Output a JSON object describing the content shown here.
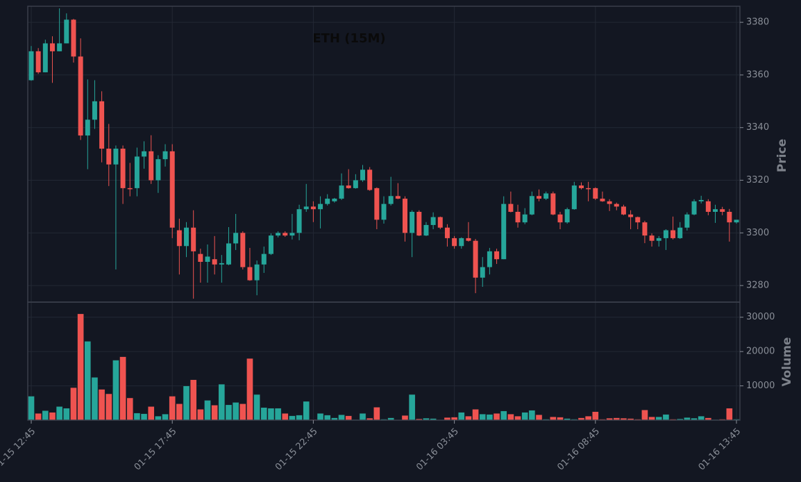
{
  "chart_data": {
    "type": "candlestick",
    "title": "ETH (15M)",
    "ylabel": "Price",
    "y2label": "Volume",
    "categories": [
      "01-15 12:45",
      null,
      null,
      null,
      null,
      null,
      null,
      null,
      null,
      null,
      null,
      null,
      null,
      null,
      null,
      null,
      null,
      null,
      null,
      null,
      "01-15 17:45",
      null,
      null,
      null,
      null,
      null,
      null,
      null,
      null,
      null,
      null,
      null,
      null,
      null,
      null,
      null,
      null,
      null,
      null,
      null,
      "01-15 22:45",
      null,
      null,
      null,
      null,
      null,
      null,
      null,
      null,
      null,
      null,
      null,
      null,
      null,
      null,
      null,
      null,
      null,
      null,
      null,
      "01-16 03:45",
      null,
      null,
      null,
      null,
      null,
      null,
      null,
      null,
      null,
      null,
      null,
      null,
      null,
      null,
      null,
      null,
      null,
      null,
      null,
      "01-16 08:45",
      null,
      null,
      null,
      null,
      null,
      null,
      null,
      null,
      null,
      null,
      null,
      null,
      null,
      null,
      null,
      null,
      null,
      null,
      null,
      "01-16 13:45"
    ],
    "open": [
      3358,
      3369,
      3361,
      3372,
      3369,
      3372,
      3381,
      3367,
      3337,
      3343,
      3350,
      3332,
      3326,
      3332,
      3317,
      3317,
      3329,
      3331,
      3320,
      3328,
      3331,
      3301,
      3295,
      3302,
      3292,
      3289,
      3290,
      3288,
      3288,
      3296,
      3300,
      3287,
      3282,
      3288,
      3292,
      3299,
      3300,
      3299,
      3300,
      3309,
      3310,
      3309,
      3311,
      3312,
      3313,
      3318,
      3317,
      3320,
      3324,
      3317,
      3305,
      3311,
      3314,
      3313,
      3300,
      3308,
      3299,
      3303,
      3306,
      3302,
      3298,
      3295,
      3298,
      3297,
      3283,
      3287,
      3293,
      3290,
      3311,
      3308,
      3304,
      3307,
      3314,
      3313,
      3315,
      3307,
      3304,
      3309,
      3318,
      3317,
      3317,
      3313,
      3312,
      3311,
      3310,
      3307,
      3306,
      3304,
      3299,
      3297,
      3298,
      3301,
      3298,
      3302,
      3307,
      3312,
      3312,
      3308,
      3309,
      3308,
      3304
    ],
    "high": [
      3371,
      3370.2,
      3373.4,
      3374.7,
      3385.3,
      3383.4,
      3381.3,
      3373.9,
      3358.3,
      3358,
      3353.8,
      3341.4,
      3333.2,
      3333.2,
      3326.6,
      3332.4,
      3334.8,
      3337.1,
      3329.5,
      3333.7,
      3333.7,
      3305.4,
      3304.1,
      3308.6,
      3294,
      3295.6,
      3298.8,
      3291.6,
      3302.2,
      3307.2,
      3300.6,
      3294.3,
      3289.5,
      3294.8,
      3299.8,
      3300.6,
      3300.6,
      3307.2,
      3310.7,
      3318.6,
      3312,
      3313.9,
      3314.7,
      3313.3,
      3322.6,
      3324.2,
      3322.3,
      3325.8,
      3325,
      3317.3,
      3313.9,
      3321.3,
      3318.9,
      3313.9,
      3308.6,
      3308.6,
      3304.1,
      3307.8,
      3306.2,
      3303.3,
      3298.8,
      3298.3,
      3304.1,
      3297.7,
      3290.8,
      3294.3,
      3294,
      3313.9,
      3315.7,
      3310.7,
      3309.4,
      3315.7,
      3316.5,
      3315.7,
      3315.7,
      3308,
      3309.6,
      3319.4,
      3319.2,
      3319.4,
      3317.3,
      3315.7,
      3312.8,
      3311.5,
      3310.7,
      3308.6,
      3306.2,
      3304.6,
      3299.8,
      3298.8,
      3301.4,
      3306.2,
      3304.1,
      3307.8,
      3312.8,
      3314.1,
      3312.8,
      3310.7,
      3309.9,
      3309.1,
      3304.9
    ],
    "low": [
      3357.8,
      3360.4,
      3361,
      3357,
      3369,
      3372,
      3364.7,
      3335.3,
      3324.2,
      3339.5,
      3326.8,
      3317.8,
      3286.1,
      3311,
      3313.9,
      3313.9,
      3324.4,
      3318.6,
      3315.2,
      3325.2,
      3298,
      3284.2,
      3290.8,
      3275,
      3281.1,
      3281.1,
      3284.2,
      3281.1,
      3287.7,
      3293.5,
      3286.1,
      3281.8,
      3276.3,
      3284.8,
      3291.6,
      3298.3,
      3298.5,
      3297.5,
      3297.2,
      3308,
      3304.1,
      3301.7,
      3310.4,
      3311.5,
      3312.5,
      3316.8,
      3316.8,
      3319.4,
      3316,
      3301.4,
      3303.5,
      3310.4,
      3312.8,
      3296.7,
      3290.8,
      3298.8,
      3298.8,
      3301.4,
      3301.4,
      3294.8,
      3294,
      3294,
      3296.7,
      3277.1,
      3279.5,
      3284.2,
      3288.2,
      3290,
      3307.8,
      3302,
      3303.3,
      3306.7,
      3312,
      3312.5,
      3306.7,
      3301.4,
      3303.5,
      3308.8,
      3316.5,
      3312,
      3312.5,
      3311.8,
      3308.3,
      3308.6,
      3306.7,
      3301.4,
      3301.4,
      3296.1,
      3294.8,
      3294.8,
      3293.5,
      3297.5,
      3297.7,
      3300.9,
      3306.7,
      3311.2,
      3306.7,
      3303.8,
      3306.7,
      3296.7,
      3303.5
    ],
    "close": [
      3369,
      3361,
      3372,
      3369,
      3372,
      3381,
      3367,
      3337,
      3343,
      3350,
      3332,
      3326,
      3332,
      3317,
      3316.6,
      3329,
      3331,
      3320,
      3328,
      3331,
      3302,
      3295,
      3302,
      3293,
      3289,
      3291,
      3288,
      3288.5,
      3296,
      3300,
      3287,
      3282,
      3288,
      3292,
      3299,
      3300,
      3299,
      3300,
      3309,
      3310,
      3309,
      3311,
      3313,
      3313,
      3318,
      3317,
      3320,
      3324,
      3316.3,
      3305,
      3311,
      3314,
      3313,
      3300,
      3308,
      3299,
      3303,
      3306,
      3302,
      3298,
      3295,
      3298,
      3297,
      3283,
      3287,
      3293,
      3290,
      3311,
      3308,
      3304,
      3307,
      3314,
      3313,
      3315,
      3307,
      3304,
      3309,
      3318,
      3317,
      3316.6,
      3313,
      3312,
      3311,
      3310,
      3307,
      3306,
      3304,
      3299,
      3297,
      3298,
      3301,
      3298,
      3302,
      3307,
      3312,
      3312.5,
      3308,
      3309,
      3308,
      3304,
      3305
    ],
    "volume": [
      7000,
      2000,
      2800,
      2300,
      4000,
      3500,
      9500,
      31000,
      23000,
      12500,
      9000,
      7700,
      17500,
      18500,
      6500,
      2100,
      1900,
      4000,
      1200,
      1800,
      7000,
      4800,
      10000,
      11800,
      3200,
      5800,
      4400,
      10500,
      4500,
      5200,
      4800,
      18000,
      7500,
      3700,
      3500,
      3500,
      2000,
      1300,
      1500,
      5500,
      200,
      2000,
      1500,
      700,
      1600,
      1300,
      200,
      2000,
      600,
      3800,
      300,
      700,
      100,
      1400,
      7500,
      400,
      600,
      500,
      100,
      800,
      900,
      2300,
      1200,
      3200,
      1800,
      1700,
      2000,
      2700,
      1800,
      1200,
      2300,
      2900,
      1600,
      300,
      1000,
      900,
      500,
      300,
      700,
      1200,
      2500,
      300,
      600,
      700,
      600,
      500,
      300,
      3000,
      1000,
      1000,
      1700,
      300,
      400,
      800,
      600,
      1200,
      700,
      200,
      300,
      3500,
      300
    ],
    "up_color": "#26a69a",
    "down_color": "#ef5350",
    "ylim": [
      3273.7,
      3386.1
    ],
    "yticks": [
      3280,
      3300,
      3320,
      3340,
      3360,
      3380
    ],
    "y2lim": [
      0,
      34400
    ],
    "y2ticks": [
      10000,
      20000,
      30000
    ],
    "grid": true
  }
}
